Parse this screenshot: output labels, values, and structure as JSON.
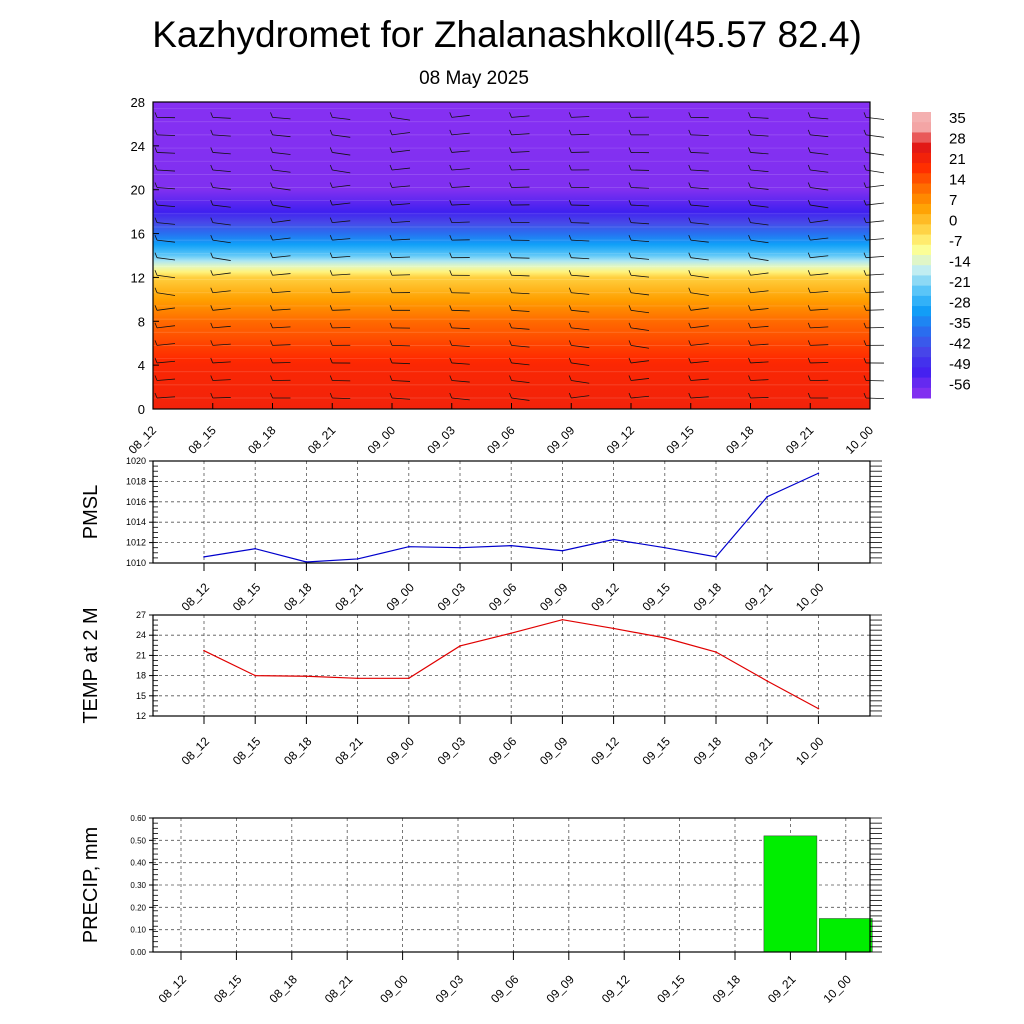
{
  "title": "Kazhydromet for Zhalanashkoll(45.57 82.4)",
  "date": "08 May 2025",
  "colorbar": {
    "labels": [
      "35",
      "28",
      "21",
      "14",
      "7",
      "0",
      "-7",
      "-14",
      "-21",
      "-28",
      "-35",
      "-42",
      "-49",
      "-56"
    ],
    "colors": [
      "#f0a0a0",
      "#e01010",
      "#ff3000",
      "#ff7000",
      "#ffa010",
      "#ffd030",
      "#ffff80",
      "#d0f0f0",
      "#60c0f0",
      "#10a0f0",
      "#3070f0",
      "#4040e0",
      "#4020f0",
      "#8030f0"
    ]
  },
  "chart_data": [
    {
      "type": "heatmap",
      "name": "cross-section",
      "x": [
        "08_12",
        "08_15",
        "08_18",
        "08_21",
        "09_00",
        "09_03",
        "09_06",
        "09_09",
        "09_12",
        "09_15",
        "09_18",
        "09_21",
        "10_00"
      ],
      "ylim": [
        0,
        28
      ],
      "yticks": [
        "0",
        "4",
        "8",
        "12",
        "16",
        "20",
        "24",
        "28"
      ],
      "level_temps": [
        {
          "height": 0,
          "temp": 24
        },
        {
          "height": 4,
          "temp": 22
        },
        {
          "height": 8,
          "temp": 14
        },
        {
          "height": 12,
          "temp": 0
        },
        {
          "height": 14,
          "temp": -21
        },
        {
          "height": 16,
          "temp": -35
        },
        {
          "height": 18,
          "temp": -49
        },
        {
          "height": 20,
          "temp": -56
        },
        {
          "height": 28,
          "temp": -60
        }
      ]
    },
    {
      "type": "line",
      "ylabel": "PMSL",
      "categories": [
        "08_12",
        "08_15",
        "08_18",
        "08_21",
        "09_00",
        "09_03",
        "09_06",
        "09_09",
        "09_12",
        "09_15",
        "09_18",
        "09_21",
        "10_00"
      ],
      "values": [
        1010.6,
        1011.4,
        1010.1,
        1010.4,
        1011.6,
        1011.5,
        1011.7,
        1011.2,
        1012.3,
        1011.5,
        1010.6,
        1016.5,
        1018.8
      ],
      "ylim": [
        1010,
        1020
      ],
      "yticks": [
        "1010",
        "1012",
        "1014",
        "1016",
        "1018",
        "1020"
      ],
      "color": "#0000cc"
    },
    {
      "type": "line",
      "ylabel": "TEMP at 2 M",
      "categories": [
        "08_12",
        "08_15",
        "08_18",
        "08_21",
        "09_00",
        "09_03",
        "09_06",
        "09_09",
        "09_12",
        "09_15",
        "09_18",
        "09_21",
        "10_00"
      ],
      "values": [
        21.7,
        18.0,
        17.9,
        17.6,
        17.6,
        22.4,
        24.3,
        26.3,
        25.0,
        23.6,
        21.5,
        17.2,
        13.1
      ],
      "ylim": [
        12,
        27
      ],
      "yticks": [
        "12",
        "15",
        "18",
        "21",
        "24",
        "27"
      ],
      "color": "#e00000"
    },
    {
      "type": "bar",
      "ylabel": "PRECIP, mm",
      "categories": [
        "08_12",
        "08_15",
        "08_18",
        "08_21",
        "09_00",
        "09_03",
        "09_06",
        "09_09",
        "09_12",
        "09_15",
        "09_18",
        "09_21",
        "10_00"
      ],
      "values": [
        0,
        0,
        0,
        0,
        0,
        0,
        0,
        0,
        0,
        0,
        0,
        0.52,
        0.15
      ],
      "ylim": [
        0,
        0.6
      ],
      "yticks": [
        "0.00",
        "0.10",
        "0.20",
        "0.30",
        "0.40",
        "0.50",
        "0.60"
      ],
      "color": "#00ee00"
    }
  ]
}
